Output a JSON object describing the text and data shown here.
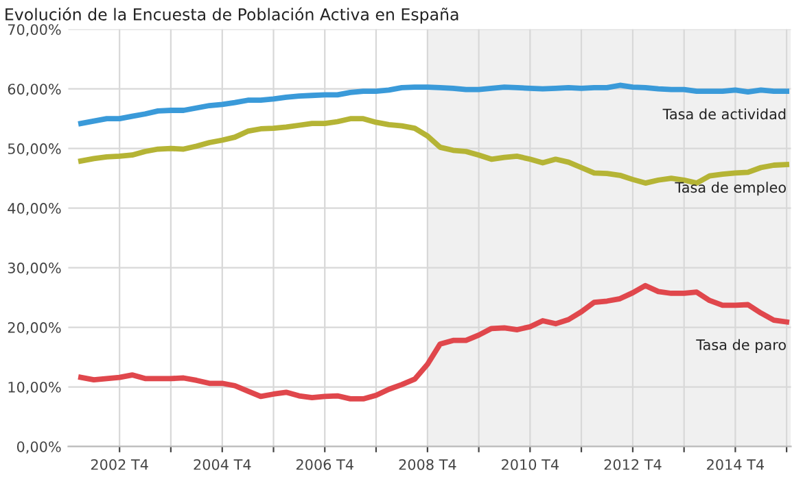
{
  "chart_data": {
    "type": "line",
    "title": "Evolución de la Encuesta de Población Activa en España",
    "x": [
      "2002-03",
      "2002-06",
      "2002-09",
      "2002-12",
      "2003-03",
      "2003-06",
      "2003-09",
      "2003-12",
      "2004-03",
      "2004-06",
      "2004-09",
      "2004-12",
      "2005-03",
      "2005-06",
      "2005-09",
      "2005-12",
      "2006-03",
      "2006-06",
      "2006-09",
      "2006-12",
      "2007-03",
      "2007-06",
      "2007-09",
      "2007-12",
      "2008-03",
      "2008-06",
      "2008-09",
      "2008-12",
      "2009-03",
      "2009-06",
      "2009-09",
      "2009-12",
      "2010-03",
      "2010-06",
      "2010-09",
      "2010-12",
      "2011-03",
      "2011-06",
      "2011-09",
      "2011-12",
      "2012-03",
      "2012-06",
      "2012-09",
      "2012-12",
      "2013-03",
      "2013-06",
      "2013-09",
      "2013-12",
      "2014-03",
      "2014-06",
      "2014-09",
      "2014-12",
      "2015-03",
      "2015-06",
      "2015-09",
      "2015-12"
    ],
    "xlim": [
      "2001-12",
      "2016-01"
    ],
    "xticks": [
      {
        "value": "2002-12",
        "label": "2002 T4"
      },
      {
        "value": "2003-12",
        "label": null
      },
      {
        "value": "2004-12",
        "label": "2004 T4"
      },
      {
        "value": "2005-12",
        "label": null
      },
      {
        "value": "2006-12",
        "label": "2006 T4"
      },
      {
        "value": "2007-12",
        "label": null
      },
      {
        "value": "2008-12",
        "label": "2008 T4"
      },
      {
        "value": "2009-12",
        "label": null
      },
      {
        "value": "2010-12",
        "label": "2010 T4"
      },
      {
        "value": "2011-12",
        "label": null
      },
      {
        "value": "2012-12",
        "label": "2012 T4"
      },
      {
        "value": "2013-12",
        "label": null
      },
      {
        "value": "2014-12",
        "label": "2014 T4"
      },
      {
        "value": "2015-12",
        "label": null
      }
    ],
    "series": [
      {
        "name": "Tasa de actividad",
        "color": "#3a9ad9",
        "values": [
          54.2,
          54.6,
          55.0,
          55.0,
          55.4,
          55.8,
          56.3,
          56.4,
          56.4,
          56.8,
          57.2,
          57.4,
          57.7,
          58.1,
          58.1,
          58.3,
          58.6,
          58.8,
          58.9,
          59.0,
          59.0,
          59.4,
          59.6,
          59.6,
          59.8,
          60.2,
          60.3,
          60.3,
          60.2,
          60.1,
          59.9,
          59.9,
          60.1,
          60.3,
          60.2,
          60.1,
          60.0,
          60.1,
          60.2,
          60.1,
          60.2,
          60.2,
          60.6,
          60.3,
          60.2,
          60.0,
          59.9,
          59.9,
          59.6,
          59.6,
          59.6,
          59.8,
          59.5,
          59.8,
          59.6,
          59.6
        ]
      },
      {
        "name": "Tasa de empleo",
        "color": "#b5b435",
        "values": [
          47.9,
          48.3,
          48.6,
          48.7,
          48.9,
          49.5,
          49.9,
          50.0,
          49.9,
          50.4,
          51.0,
          51.4,
          51.9,
          52.9,
          53.3,
          53.4,
          53.6,
          53.9,
          54.2,
          54.2,
          54.5,
          55.0,
          55.0,
          54.4,
          54.0,
          53.8,
          53.4,
          52.1,
          50.2,
          49.7,
          49.5,
          48.9,
          48.2,
          48.5,
          48.7,
          48.2,
          47.6,
          48.2,
          47.7,
          46.8,
          45.9,
          45.8,
          45.5,
          44.8,
          44.2,
          44.7,
          45.0,
          44.7,
          44.2,
          45.4,
          45.7,
          45.9,
          46.0,
          46.8,
          47.2,
          47.3
        ]
      },
      {
        "name": "Tasa de paro",
        "color": "#e0474c",
        "values": [
          11.6,
          11.2,
          11.4,
          11.6,
          12.0,
          11.4,
          11.4,
          11.4,
          11.5,
          11.1,
          10.6,
          10.6,
          10.2,
          9.3,
          8.4,
          8.8,
          9.1,
          8.5,
          8.2,
          8.4,
          8.5,
          8.0,
          8.0,
          8.6,
          9.6,
          10.4,
          11.3,
          13.8,
          17.2,
          17.8,
          17.8,
          18.7,
          19.8,
          19.9,
          19.6,
          20.1,
          21.1,
          20.6,
          21.3,
          22.6,
          24.2,
          24.4,
          24.8,
          25.8,
          27.0,
          26.0,
          25.7,
          25.7,
          25.9,
          24.5,
          23.7,
          23.7,
          23.8,
          22.4,
          21.2,
          20.9
        ]
      }
    ],
    "ylim": [
      0,
      70
    ],
    "yticks": [
      {
        "value": 0,
        "label": "0,00%"
      },
      {
        "value": 10,
        "label": "10,00%"
      },
      {
        "value": 20,
        "label": "20,00%"
      },
      {
        "value": 30,
        "label": "30,00%"
      },
      {
        "value": 40,
        "label": "40,00%"
      },
      {
        "value": 50,
        "label": "50,00%"
      },
      {
        "value": 60,
        "label": "60,00%"
      },
      {
        "value": 70,
        "label": "70,00%"
      }
    ],
    "bands": [
      {
        "axis": "x",
        "from": "2008-12",
        "to": "2016-01",
        "color": "#f0f0f0"
      }
    ],
    "grid": true,
    "legend": false,
    "marker": "none",
    "line_style": "solid"
  }
}
